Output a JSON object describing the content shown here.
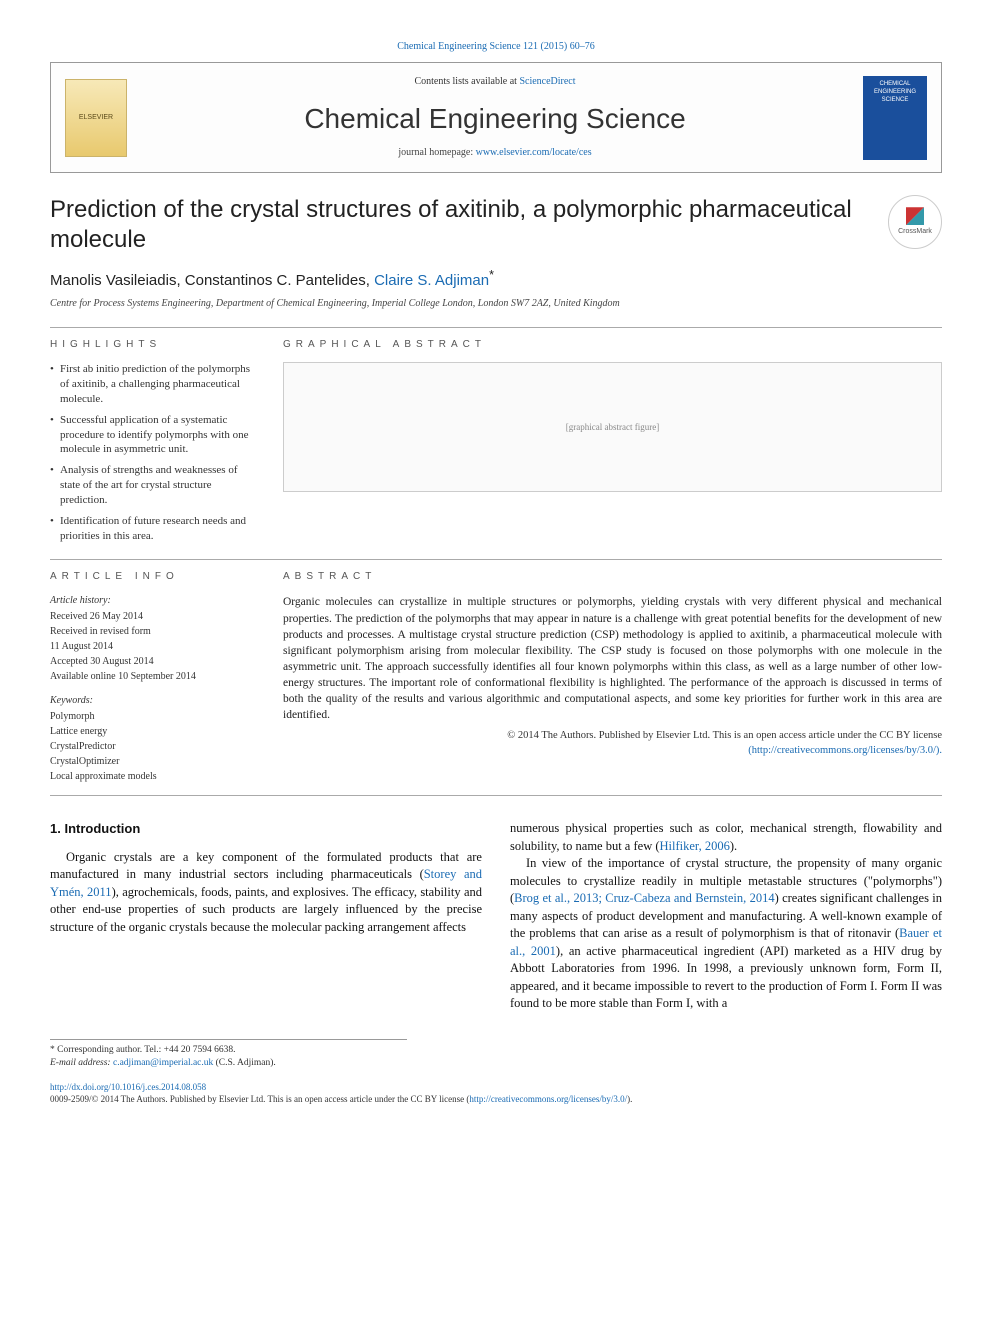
{
  "header": {
    "citation": "Chemical Engineering Science 121 (2015) 60–76",
    "contents_prefix": "Contents lists available at ",
    "contents_link": "ScienceDirect",
    "journal": "Chemical Engineering Science",
    "homepage_prefix": "journal homepage: ",
    "homepage_url": "www.elsevier.com/locate/ces",
    "publisher_logo": "ELSEVIER",
    "cover_text": "CHEMICAL ENGINEERING SCIENCE"
  },
  "crossmark": "CrossMark",
  "article": {
    "title": "Prediction of the crystal structures of axitinib, a polymorphic pharmaceutical molecule",
    "authors_prefix": "Manolis Vasileiadis, Constantinos C. Pantelides, ",
    "author_corr": "Claire S. Adjiman",
    "author_mark": "*",
    "affiliation": "Centre for Process Systems Engineering, Department of Chemical Engineering, Imperial College London, London SW7 2AZ, United Kingdom"
  },
  "highlights": {
    "label": "HIGHLIGHTS",
    "items": [
      "First ab initio prediction of the polymorphs of axitinib, a challenging pharmaceutical molecule.",
      "Successful application of a systematic procedure to identify polymorphs with one molecule in asymmetric unit.",
      "Analysis of strengths and weaknesses of state of the art for crystal structure prediction.",
      "Identification of future research needs and priorities in this area."
    ]
  },
  "graphical_label": "GRAPHICAL ABSTRACT",
  "graphical_placeholder": "[graphical abstract figure]",
  "info": {
    "label": "ARTICLE INFO",
    "history_title": "Article history:",
    "history": [
      "Received 26 May 2014",
      "Received in revised form",
      "11 August 2014",
      "Accepted 30 August 2014",
      "Available online 10 September 2014"
    ],
    "keywords_title": "Keywords:",
    "keywords": [
      "Polymorph",
      "Lattice energy",
      "CrystalPredictor",
      "CrystalOptimizer",
      "Local approximate models"
    ]
  },
  "abstract": {
    "label": "ABSTRACT",
    "text": "Organic molecules can crystallize in multiple structures or polymorphs, yielding crystals with very different physical and mechanical properties. The prediction of the polymorphs that may appear in nature is a challenge with great potential benefits for the development of new products and processes. A multistage crystal structure prediction (CSP) methodology is applied to axitinib, a pharmaceutical molecule with significant polymorphism arising from molecular flexibility. The CSP study is focused on those polymorphs with one molecule in the asymmetric unit. The approach successfully identifies all four known polymorphs within this class, as well as a large number of other low-energy structures. The important role of conformational flexibility is highlighted. The performance of the approach is discussed in terms of both the quality of the results and various algorithmic and computational aspects, and some key priorities for further work in this area are identified.",
    "copyright": "© 2014 The Authors. Published by Elsevier Ltd. This is an open access article under the CC BY license",
    "license_url": "(http://creativecommons.org/licenses/by/3.0/)."
  },
  "body": {
    "section_heading": "1.  Introduction",
    "col1_a": "Organic crystals are a key component of the formulated products that are manufactured in many industrial sectors including pharmaceuticals (",
    "ref1": "Storey and Ymén, 2011",
    "col1_b": "), agrochemicals, foods, paints, and explosives. The efficacy, stability and other end-use properties of such products are largely influenced by the precise structure of the organic crystals because the molecular packing arrangement affects",
    "col2_a": "numerous physical properties such as color, mechanical strength, flowability and solubility, to name but a few (",
    "ref2": "Hilfiker, 2006",
    "col2_b": ").",
    "col2_c": "In view of the importance of crystal structure, the propensity of many organic molecules to crystallize readily in multiple metastable structures (\"polymorphs\") (",
    "ref3": "Brog et al., 2013; Cruz-Cabeza and Bernstein, 2014",
    "col2_d": ") creates significant challenges in many aspects of product development and manufacturing. A well-known example of the problems that can arise as a result of polymorphism is that of ritonavir (",
    "ref4": "Bauer et al., 2001",
    "col2_e": "), an active pharmaceutical ingredient (API) marketed as a HIV drug by Abbott Laboratories from 1996. In 1998, a previously unknown form, Form II, appeared, and it became impossible to revert to the production of Form I. Form II was found to be more stable than Form I, with a"
  },
  "footnotes": {
    "corr": "* Corresponding author. Tel.: +44 20 7594 6638.",
    "email_label": "E-mail address: ",
    "email": "c.adjiman@imperial.ac.uk",
    "email_tail": " (C.S. Adjiman)."
  },
  "bottom": {
    "doi": "http://dx.doi.org/10.1016/j.ces.2014.08.058",
    "issn_line_a": "0009-2509/© 2014 The Authors. Published by Elsevier Ltd. This is an open access article under the CC BY license (",
    "issn_link": "http://creativecommons.org/licenses/by/3.0/",
    "issn_line_b": ")."
  },
  "colors": {
    "link": "#1a6bb3",
    "rule": "#aaaaaa",
    "elsevier_bg": "#e8c96e",
    "cover_bg": "#1a4f9c"
  }
}
